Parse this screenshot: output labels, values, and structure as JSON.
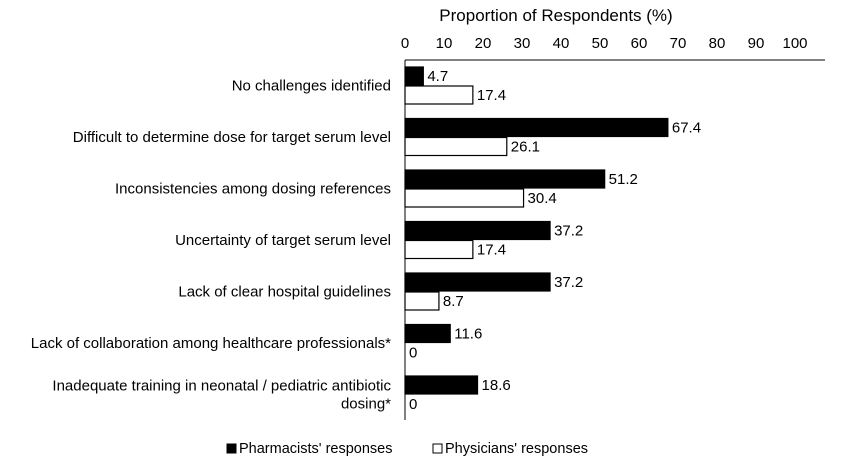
{
  "chart_data": {
    "type": "bar",
    "orientation": "horizontal",
    "xlabel": "Proportion of Respondents (%)",
    "xlim": [
      0,
      100
    ],
    "xticks": [
      0,
      10,
      20,
      30,
      40,
      50,
      60,
      70,
      80,
      90,
      100
    ],
    "axis_position": "top",
    "grid": false,
    "legend_position": "bottom",
    "categories": [
      "No challenges identified",
      "Difficult to determine dose for target serum level",
      "Inconsistencies among dosing references",
      "Uncertainty of target serum level",
      "Lack of clear hospital guidelines",
      "Lack of collaboration among healthcare professionals*",
      [
        "Inadequate training in neonatal / pediatric antibiotic",
        "dosing*"
      ]
    ],
    "series": [
      {
        "name": "Pharmacists' responses",
        "color": "#000000",
        "values": [
          4.7,
          67.4,
          51.2,
          37.2,
          37.2,
          11.6,
          18.6
        ]
      },
      {
        "name": "Physicians' responses",
        "color": "#ffffff",
        "values": [
          17.4,
          26.1,
          30.4,
          17.4,
          8.7,
          0,
          0
        ]
      }
    ]
  }
}
